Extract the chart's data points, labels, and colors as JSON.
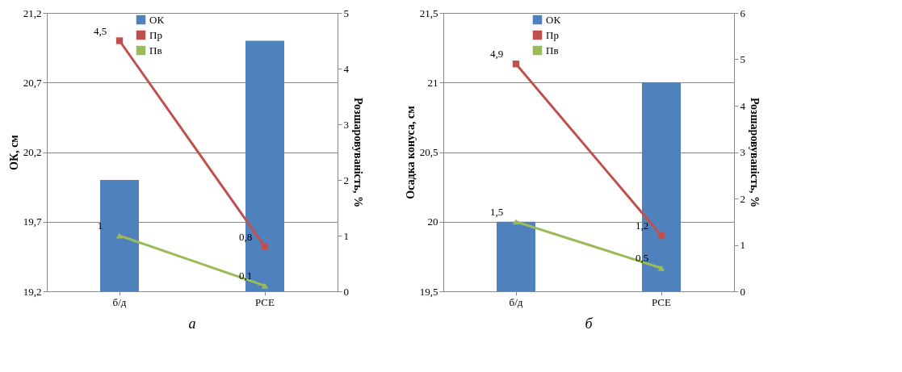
{
  "chart_data": [
    {
      "type": "bar",
      "categories": [
        "б/д",
        "PCE"
      ],
      "ylabel": "ОК, см",
      "y2label": "Розшаровуваність, %",
      "annotations": [
        "а"
      ],
      "ylim": [
        19.2,
        21.2
      ],
      "yticks": [
        {
          "value": 19.2,
          "label": "19,2"
        },
        {
          "value": 19.7,
          "label": "19,7"
        },
        {
          "value": 20.2,
          "label": "20,2"
        },
        {
          "value": 20.7,
          "label": "20,7"
        },
        {
          "value": 21.2,
          "label": "21,2"
        }
      ],
      "y2lim": [
        0,
        5
      ],
      "y2ticks": [
        0,
        1,
        2,
        3,
        4,
        5
      ],
      "grid": "y",
      "legend": "top",
      "series": [
        {
          "name": "ОК",
          "color": "#4f81bd",
          "values": [
            20.0,
            21.0
          ]
        },
        {
          "name": "Пр",
          "type": "line",
          "axis": "y2",
          "marker": "square",
          "color": "#c0504d",
          "values": [
            4.5,
            0.8
          ],
          "value_labels": [
            "4,5",
            "0,8"
          ]
        },
        {
          "name": "Пв",
          "type": "line",
          "axis": "y2",
          "marker": "triangle",
          "color": "#9bbb59",
          "values": [
            1,
            0.1
          ],
          "value_labels": [
            "1",
            "0,1"
          ]
        }
      ]
    },
    {
      "type": "bar",
      "categories": [
        "б/д",
        "PCE"
      ],
      "ylabel": "Осадка конуса, см",
      "y2label": "Розшаровуваність, %",
      "annotations": [
        "б"
      ],
      "ylim": [
        19.5,
        21.5
      ],
      "yticks": [
        {
          "value": 19.5,
          "label": "19,5"
        },
        20,
        {
          "value": 20.5,
          "label": "20,5"
        },
        21,
        {
          "value": 21.5,
          "label": "21,5"
        }
      ],
      "y2lim": [
        0,
        6
      ],
      "y2ticks": [
        0,
        1,
        2,
        3,
        4,
        5,
        6
      ],
      "grid": "y",
      "legend": "top",
      "series": [
        {
          "name": "ОК",
          "color": "#4f81bd",
          "values": [
            20.0,
            21.0
          ]
        },
        {
          "name": "Пр",
          "type": "line",
          "axis": "y2",
          "marker": "square",
          "color": "#c0504d",
          "values": [
            4.9,
            1.2
          ],
          "value_labels": [
            "4,9",
            "1,2"
          ]
        },
        {
          "name": "Пв",
          "type": "line",
          "axis": "y2",
          "marker": "triangle",
          "color": "#9bbb59",
          "values": [
            1.5,
            0.5
          ],
          "value_labels": [
            "1,5",
            "0,5"
          ]
        }
      ]
    }
  ]
}
